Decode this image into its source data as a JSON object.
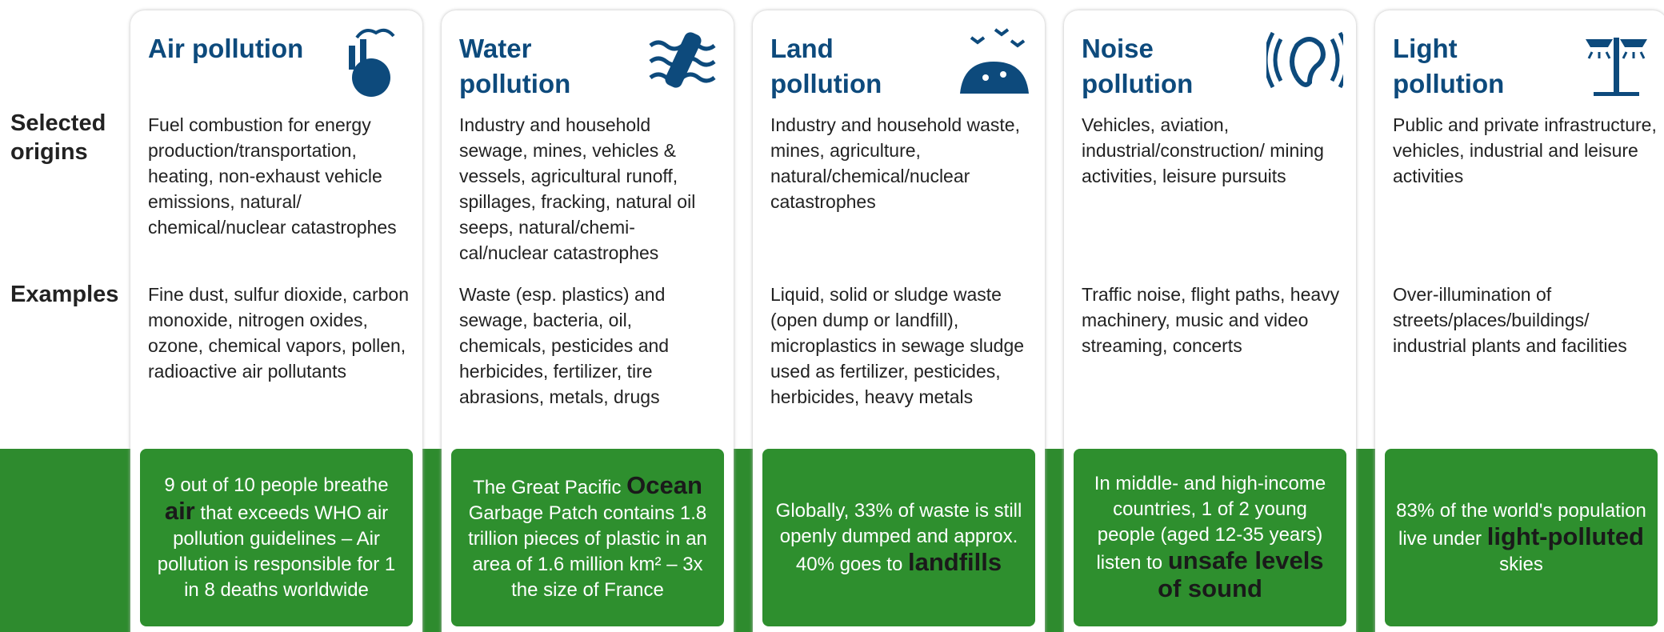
{
  "row_labels": [
    "Selected origins",
    "Examples"
  ],
  "columns": [
    {
      "title": "Air pollution",
      "origins": "Fuel combustion for energy production/transportation, heating, non-exhaust vehicle emissions, natural/ chemical/nuclear catastrophes",
      "examples": "Fine dust, sulfur dioxide, carbon monoxide, nitrogen oxides, ozone, chemical vapors, pollen, radioactive air pollutants",
      "fact": {
        "lead": "9 out of 10 people breathe",
        "highlight": "air",
        "tail": "that exceeds WHO air pollution guidelines – Air pollution is responsible for 1 in 8 deaths worldwide"
      }
    },
    {
      "title": "Water pollution",
      "origins": "Industry and household sewage, mines, vehicles & vessels, agricultural runoff, spillages, fracking, natural oil seeps, natural/chemi-cal/nuclear catastrophes",
      "examples": "Waste (esp. plastics) and sewage, bacteria, oil, chemicals, pesticides and herbicides, fertilizer, tire abrasions, metals, drugs",
      "fact": {
        "lead": "The Great Pacific",
        "highlight": "Ocean",
        "tail": "Garbage Patch contains 1.8 trillion pieces of plastic in an area of 1.6 million km² – 3x the size of France"
      }
    },
    {
      "title": "Land pollution",
      "origins": "Industry and household waste, mines, agriculture, natural/chemical/nuclear catastrophes",
      "examples": "Liquid, solid or sludge waste (open dump or landfill), microplastics in sewage sludge used as fertilizer, pesticides, herbicides, heavy metals",
      "fact": {
        "lead": "Globally, 33% of waste is still openly dumped and approx. 40% goes to",
        "highlight": "landfills"
      }
    },
    {
      "title": "Noise pollution",
      "origins": "Vehicles, aviation, industrial/construction/ mining activities, leisure pursuits",
      "examples": "Traffic noise, flight paths, heavy machinery, music and video streaming, concerts",
      "fact": {
        "lead": "In middle- and high-income countries, 1 of 2 young people (aged 12-35 years) listen to",
        "highlight": "unsafe levels of sound"
      }
    },
    {
      "title": "Light pollution",
      "origins": "Public and private infrastructure, vehicles, industrial and leisure activities",
      "examples": "Over-illumination of streets/places/buildings/ industrial plants and facilities",
      "fact": {
        "lead": "83% of the world's population live under",
        "highlight": "light-polluted",
        "tail": "skies"
      }
    }
  ]
}
